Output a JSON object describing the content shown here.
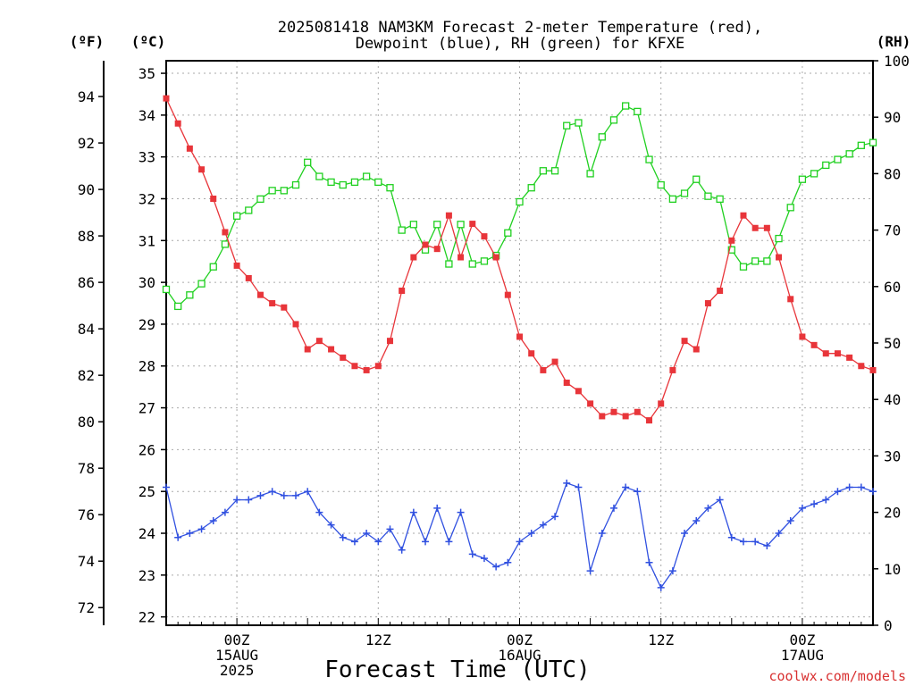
{
  "title_line1": "2025081418 NAM3KM Forecast 2-meter Temperature (red),",
  "title_line2": "Dewpoint (blue), RH (green) for KFXE",
  "left_outer_unit": "(ºF)",
  "left_inner_unit": "(ºC)",
  "right_unit": "(RH)",
  "xlabel": "Forecast Time (UTC)",
  "credit": "coolwx.com/models",
  "colors": {
    "temperature": "#e8353a",
    "dewpoint": "#3050e0",
    "rh": "#20d020",
    "grid": "#aaaaaa"
  },
  "chart_data": {
    "type": "line",
    "title": "2025081418 NAM3KM Forecast 2-meter Temperature (red), Dewpoint (blue), RH (green) for KFXE",
    "xlabel": "Forecast Time (UTC)",
    "x_unit": "hours since 2025-08-14 18Z",
    "xlim": [
      0,
      60
    ],
    "x_ticks": [
      {
        "x": 6,
        "lines": [
          "00Z",
          "15AUG",
          "2025"
        ]
      },
      {
        "x": 18,
        "lines": [
          "12Z"
        ]
      },
      {
        "x": 30,
        "lines": [
          "00Z",
          "16AUG"
        ]
      },
      {
        "x": 42,
        "lines": [
          "12Z"
        ]
      },
      {
        "x": 54,
        "lines": [
          "00Z",
          "17AUG"
        ]
      }
    ],
    "y_celsius": {
      "label": "(ºC)",
      "lim": [
        21.8,
        35.3
      ],
      "ticks": [
        22,
        23,
        24,
        25,
        26,
        27,
        28,
        29,
        30,
        31,
        32,
        33,
        34,
        35
      ]
    },
    "y_fahrenheit": {
      "label": "(ºF)",
      "ticks": [
        72,
        74,
        76,
        78,
        80,
        82,
        84,
        86,
        88,
        90,
        92,
        94
      ]
    },
    "y_rh": {
      "label": "(RH)",
      "lim": [
        0,
        100
      ],
      "ticks": [
        0,
        10,
        20,
        30,
        40,
        50,
        60,
        70,
        80,
        90,
        100
      ]
    },
    "series": [
      {
        "name": "Temperature",
        "axis": "celsius",
        "marker": "filled-square",
        "values": [
          34.4,
          33.8,
          33.2,
          32.7,
          32.0,
          31.2,
          30.4,
          30.1,
          29.7,
          29.5,
          29.4,
          29.0,
          28.4,
          28.6,
          28.4,
          28.2,
          28.0,
          27.9,
          28.0,
          28.6,
          29.8,
          30.6,
          30.9,
          30.8,
          31.6,
          30.6,
          31.4,
          31.1,
          30.6,
          29.7,
          28.7,
          28.3,
          27.9,
          28.1,
          27.6,
          27.4,
          27.1,
          26.8,
          26.9,
          26.8,
          26.9,
          26.7,
          27.1,
          27.9,
          28.6,
          28.4,
          29.5,
          29.8,
          31.0,
          31.6,
          31.3,
          31.3,
          30.6,
          29.6,
          28.7,
          28.5,
          28.3,
          28.3,
          28.2,
          28.0,
          27.9
        ]
      },
      {
        "name": "Dewpoint",
        "axis": "celsius",
        "marker": "plus",
        "values": [
          25.1,
          23.9,
          24.0,
          24.1,
          24.3,
          24.5,
          24.8,
          24.8,
          24.9,
          25.0,
          24.9,
          24.9,
          25.0,
          24.5,
          24.2,
          23.9,
          23.8,
          24.0,
          23.8,
          24.1,
          23.6,
          24.5,
          23.8,
          24.6,
          23.8,
          24.5,
          23.5,
          23.4,
          23.2,
          23.3,
          23.8,
          24.0,
          24.2,
          24.4,
          25.2,
          25.1,
          23.1,
          24.0,
          24.6,
          25.1,
          25.0,
          23.3,
          22.7,
          23.1,
          24.0,
          24.3,
          24.6,
          24.8,
          23.9,
          23.8,
          23.8,
          23.7,
          24.0,
          24.3,
          24.6,
          24.7,
          24.8,
          25.0,
          25.1,
          25.1,
          25.0
        ]
      },
      {
        "name": "RH",
        "axis": "rh",
        "marker": "open-square",
        "values": [
          59.5,
          56.5,
          58.5,
          60.5,
          63.5,
          67.5,
          72.5,
          73.5,
          75.5,
          77.0,
          77.0,
          78.0,
          82.0,
          79.5,
          78.5,
          78.0,
          78.5,
          79.5,
          78.5,
          77.5,
          70.0,
          71.0,
          66.5,
          71.0,
          64.0,
          71.0,
          64.0,
          64.5,
          65.5,
          69.5,
          75.0,
          77.5,
          80.5,
          80.5,
          88.5,
          89.0,
          80.0,
          86.5,
          89.5,
          92.0,
          91.0,
          82.5,
          78.0,
          75.5,
          76.5,
          79.0,
          76.0,
          75.5,
          66.5,
          63.5,
          64.5,
          64.5,
          68.5,
          74.0,
          79.0,
          80.0,
          81.5,
          82.5,
          83.5,
          85.0,
          85.5
        ]
      }
    ]
  }
}
